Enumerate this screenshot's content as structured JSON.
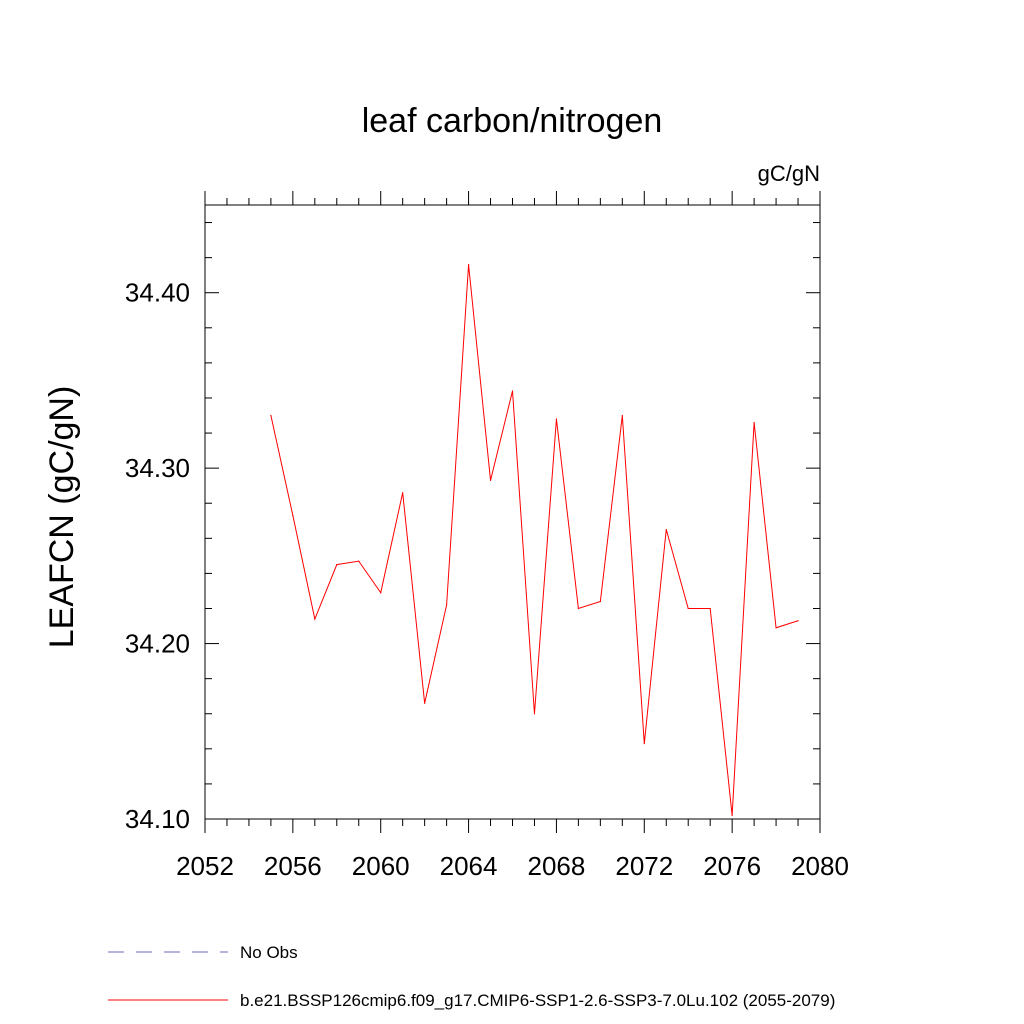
{
  "chart_data": {
    "type": "line",
    "title": "leaf carbon/nitrogen",
    "units_label": "gC/gN",
    "ylabel": "LEAFCN  (gC/gN)",
    "xlabel": "",
    "xlim": [
      2052,
      2080
    ],
    "ylim": [
      34.1,
      34.45
    ],
    "x_ticks": [
      2052,
      2056,
      2060,
      2064,
      2068,
      2072,
      2076,
      2080
    ],
    "x_tick_labels": [
      "2052",
      "2056",
      "2060",
      "2064",
      "2068",
      "2072",
      "2076",
      "2080"
    ],
    "y_ticks": [
      34.1,
      34.2,
      34.3,
      34.4
    ],
    "y_tick_labels": [
      "34.10",
      "34.20",
      "34.30",
      "34.40"
    ],
    "grid": false,
    "legend_position": "bottom",
    "series": [
      {
        "name": "b.e21.BSSP126cmip6.f09_g17.CMIP6-SSP1-2.6-SSP3-7.0Lu.102 (2055-2079)",
        "color": "#ff0000",
        "x": [
          2055,
          2056,
          2057,
          2058,
          2059,
          2060,
          2061,
          2062,
          2063,
          2064,
          2065,
          2066,
          2067,
          2068,
          2069,
          2070,
          2071,
          2072,
          2073,
          2074,
          2075,
          2076,
          2077,
          2078,
          2079
        ],
        "y": [
          34.33,
          34.273,
          34.214,
          34.245,
          34.247,
          34.229,
          34.286,
          34.166,
          34.222,
          34.416,
          34.293,
          34.344,
          34.16,
          34.328,
          34.22,
          34.224,
          34.33,
          34.143,
          34.265,
          34.22,
          34.22,
          34.102,
          34.326,
          34.209,
          34.213
        ]
      }
    ],
    "legend": [
      {
        "label": "No Obs",
        "style": "dashed",
        "color": "#6b6bbf"
      },
      {
        "label": "b.e21.BSSP126cmip6.f09_g17.CMIP6-SSP1-2.6-SSP3-7.0Lu.102 (2055-2079)",
        "style": "solid",
        "color": "#ff0000"
      }
    ]
  }
}
